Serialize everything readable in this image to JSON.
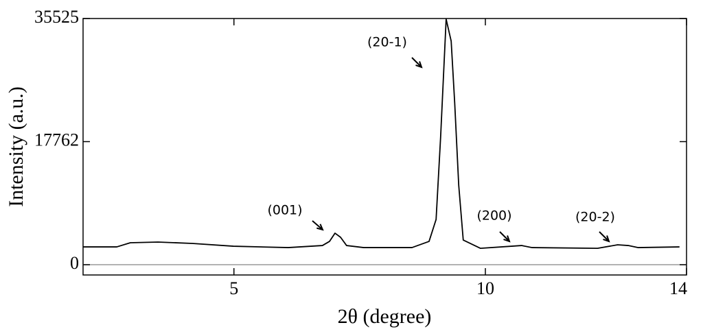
{
  "chart_data": {
    "type": "line",
    "xlabel": "2θ (degree)",
    "ylabel": "Intensity (a.u.)",
    "x": [
      2.0,
      2.67,
      2.94,
      3.49,
      4.17,
      4.99,
      6.08,
      6.76,
      6.9,
      7.01,
      7.12,
      7.24,
      7.58,
      8.54,
      8.88,
      9.02,
      9.11,
      9.22,
      9.32,
      9.39,
      9.47,
      9.56,
      9.9,
      10.52,
      10.72,
      10.93,
      12.23,
      12.63,
      12.84,
      13.04,
      13.86
    ],
    "series": [
      {
        "color": "#000000",
        "values": [
          2570,
          2570,
          3170,
          3270,
          3070,
          2670,
          2470,
          2770,
          3360,
          4550,
          3960,
          2770,
          2470,
          2470,
          3360,
          6530,
          18400,
          35430,
          32260,
          23350,
          11480,
          3560,
          2370,
          2670,
          2770,
          2470,
          2370,
          2870,
          2770,
          2470,
          2570
        ]
      }
    ],
    "xlim": [
      2,
      14
    ],
    "xticks": [
      5,
      10,
      14
    ],
    "ylim": [
      -1480,
      35525
    ],
    "yticks": [
      0,
      17762,
      35525
    ],
    "zero_line": true,
    "annotations": [
      "(001)",
      "(20-1)",
      "(200)",
      "(20-2)"
    ]
  }
}
